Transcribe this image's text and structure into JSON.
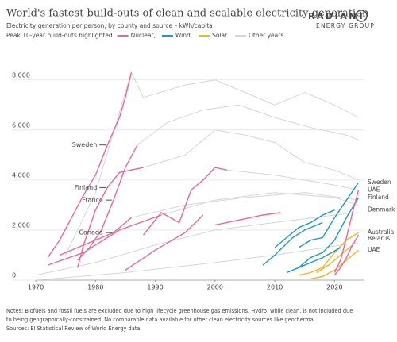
{
  "chart_data": {
    "type": "line",
    "title": "World's fastest build-outs of clean and scalable electricity generation",
    "subtitle": "Electricity generation per person, by county and source – kWh/capita",
    "legend_title": "Peak 10-year build-outs highlighted",
    "logo": [
      "RADIANT",
      "ENERGY GROUP"
    ],
    "notes": [
      "Notes: Biofuels and fossil fuels are excluded due to high lifecycle greenhouse gas emissions. Hydro, while clean, is not included due",
      "to being geographically-constrained. No comparable data available for other clean electricity sources like geothermal",
      "Sources: EI Statistical Review of World Energy data"
    ],
    "xlim": [
      1970,
      2025
    ],
    "xticks": [
      1970,
      1980,
      1990,
      2000,
      2010,
      2020
    ],
    "ylim": [
      0,
      8500
    ],
    "yticks": [
      0,
      {
        "value": 2000,
        "label": "2,000"
      },
      {
        "value": 4000,
        "label": "4,000"
      },
      {
        "value": 6000,
        "label": "6,000"
      },
      {
        "value": 8000,
        "label": "8,000"
      }
    ],
    "grid": true,
    "series": [
      {
        "name": "Nuclear,",
        "color": "#e8679a",
        "lines": [
          {
            "label": "Sweden",
            "x": [
              1972,
              1974,
              1976,
              1978,
              1980,
              1982,
              1984,
              1985,
              1986
            ],
            "values": [
              900,
              1600,
              2500,
              3400,
              4200,
              5400,
              6500,
              7300,
              8300
            ]
          },
          {
            "label": "France",
            "x": [
              1977,
              1979,
              1981,
              1983,
              1985,
              1987
            ],
            "values": [
              800,
              1300,
              2000,
              3200,
              4500,
              5400
            ]
          },
          {
            "label": "Finland",
            "x": [
              1977,
              1978,
              1980,
              1982,
              1984,
              1988
            ],
            "values": [
              500,
              1400,
              2800,
              3700,
              4300,
              4500
            ]
          },
          {
            "label": "Canada",
            "x": [
              1974,
              1977,
              1980,
              1983,
              1986
            ],
            "values": [
              1000,
              1300,
              1600,
              1900,
              2500
            ]
          },
          {
            "x": [
              1988,
              1991,
              1994,
              1996,
              1998,
              2000,
              2002
            ],
            "values": [
              1800,
              2700,
              2300,
              3600,
              4000,
              4500,
              4400
            ]
          },
          {
            "x": [
              2000,
              2004,
              2008,
              2011
            ],
            "values": [
              2200,
              2400,
              2600,
              2700
            ]
          },
          {
            "x": [
              1972,
              1978,
              1984,
              1991
            ],
            "values": [
              600,
              1100,
              2000,
              2600
            ]
          },
          {
            "x": [
              1985,
              1990,
              1995,
              1998
            ],
            "values": [
              400,
              1200,
              1900,
              2600
            ]
          },
          {
            "label": "UAE",
            "x": [
              2020,
              2021,
              2022,
              2023,
              2024
            ],
            "values": [
              300,
              800,
              1700,
              2700,
              3600
            ]
          },
          {
            "label": "Belarus",
            "x": [
              2020,
              2021,
              2022,
              2023,
              2024
            ],
            "values": [
              200,
              500,
              900,
              1400,
              1800
            ]
          }
        ]
      },
      {
        "name": "Wind,",
        "color": "#1e96c8",
        "lines": [
          {
            "label": "Denmark",
            "x": [
              2010,
              2012,
              2014,
              2016,
              2018,
              2020
            ],
            "values": [
              1300,
              1700,
              2100,
              2300,
              2600,
              2800
            ]
          },
          {
            "label": "Sweden",
            "x": [
              2014,
              2016,
              2018,
              2020,
              2022,
              2024
            ],
            "values": [
              1300,
              1600,
              1700,
              2500,
              3200,
              3900
            ]
          },
          {
            "label": "Finland",
            "x": [
              2014,
              2016,
              2018,
              2020,
              2022,
              2024
            ],
            "values": [
              500,
              900,
              1100,
              1600,
              2500,
              3300
            ]
          },
          {
            "x": [
              2008,
              2010,
              2013,
              2015,
              2018
            ],
            "values": [
              600,
              1000,
              1700,
              2000,
              2300
            ]
          },
          {
            "x": [
              2012,
              2015,
              2018,
              2021
            ],
            "values": [
              300,
              600,
              900,
              1300
            ]
          }
        ]
      },
      {
        "name": "Solar.",
        "color": "#f0b429",
        "lines": [
          {
            "label": "Australia",
            "x": [
              2014,
              2016,
              2018,
              2020,
              2022,
              2024
            ],
            "values": [
              200,
              300,
              500,
              1100,
              1600,
              1900
            ]
          },
          {
            "label": "UAE",
            "x": [
              2016,
              2018,
              2020,
              2022,
              2024
            ],
            "values": [
              50,
              150,
              400,
              800,
              1200
            ]
          },
          {
            "x": [
              2017,
              2019,
              2021,
              2023
            ],
            "values": [
              300,
              600,
              1000,
              1400
            ]
          }
        ]
      },
      {
        "name": "Other years",
        "color": "#d6d6d6",
        "lines": [
          {
            "x": [
              1975,
              1980,
              1986,
              1988,
              1995,
              2000,
              2005,
              2010,
              2015,
              2020,
              2024
            ],
            "values": [
              1000,
              3500,
              8300,
              7300,
              7800,
              8000,
              7500,
              7000,
              7500,
              7000,
              6500
            ]
          },
          {
            "x": [
              1987,
              1992,
              1998,
              2004,
              2010,
              2016,
              2022,
              2024
            ],
            "values": [
              5400,
              6300,
              6800,
              7000,
              6500,
              6100,
              5800,
              5600
            ]
          },
          {
            "x": [
              1988,
              1995,
              2000,
              2005,
              2010,
              2015,
              2020,
              2024
            ],
            "values": [
              4500,
              5000,
              6000,
              5800,
              5500,
              4700,
              4400,
              4000
            ]
          },
          {
            "x": [
              1970,
              1980,
              1990,
              2000,
              2010,
              2020,
              2024
            ],
            "values": [
              200,
              700,
              1400,
              2000,
              2300,
              2600,
              2700
            ]
          },
          {
            "x": [
              1970,
              1985,
              2000,
              2010,
              2024
            ],
            "values": [
              0,
              300,
              700,
              1000,
              1500
            ]
          },
          {
            "x": [
              1991,
              2000,
              2010,
              2020,
              2024
            ],
            "values": [
              2600,
              3200,
              3500,
              3300,
              3000
            ]
          },
          {
            "x": [
              2002,
              2010,
              2020,
              2024
            ],
            "values": [
              4400,
              4200,
              3800,
              3600
            ]
          },
          {
            "x": [
              1986,
              1995,
              2005,
              2015,
              2024
            ],
            "values": [
              2500,
              3000,
              3300,
              3500,
              3200
            ]
          }
        ]
      }
    ]
  }
}
